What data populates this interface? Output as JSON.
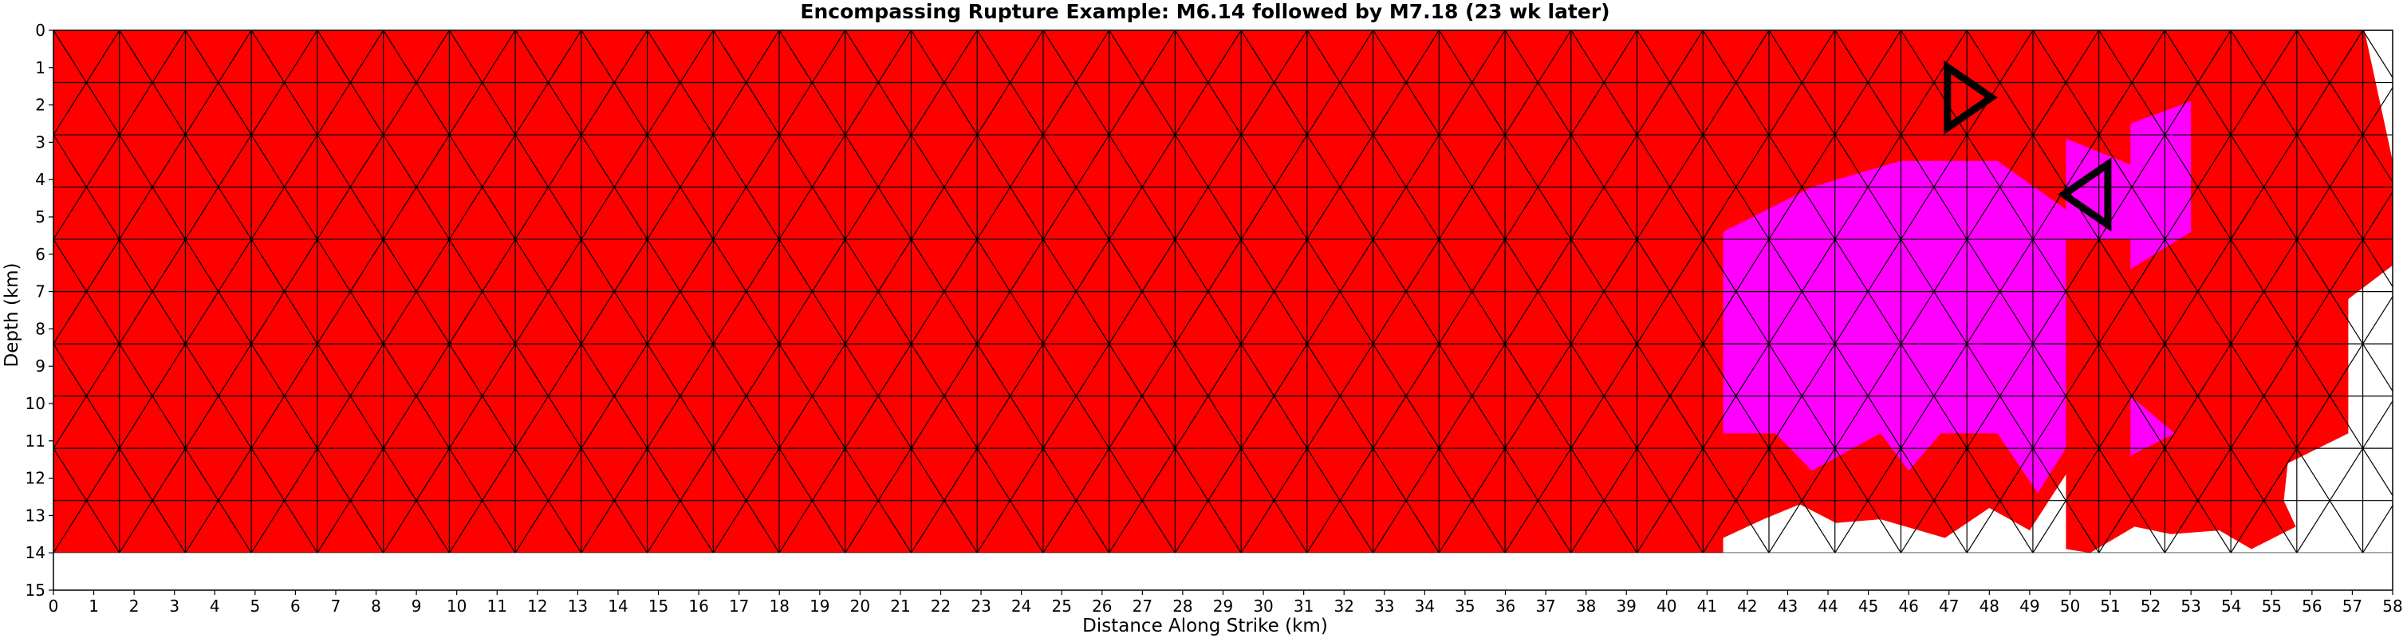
{
  "chart_data": {
    "type": "heatmap",
    "title": "Encompassing Rupture Example: M6.14 followed by M7.18 (23 wk later)",
    "xlabel": "Distance Along Strike (km)",
    "ylabel": "Depth (km)",
    "xlim": [
      0,
      58
    ],
    "ylim": [
      15,
      0
    ],
    "y_inverted": true,
    "xticks": [
      0,
      1,
      2,
      3,
      4,
      5,
      6,
      7,
      8,
      9,
      10,
      11,
      12,
      13,
      14,
      15,
      16,
      17,
      18,
      19,
      20,
      21,
      22,
      23,
      24,
      25,
      26,
      27,
      28,
      29,
      30,
      31,
      32,
      33,
      34,
      35,
      36,
      37,
      38,
      39,
      40,
      41,
      42,
      43,
      44,
      45,
      46,
      47,
      48,
      49,
      50,
      51,
      52,
      53,
      54,
      55,
      56,
      57,
      58
    ],
    "yticks": [
      0,
      1,
      2,
      3,
      4,
      5,
      6,
      7,
      8,
      9,
      10,
      11,
      12,
      13,
      14,
      15
    ],
    "mesh": {
      "description": "triangular fault mesh, node spacing 1.636 km along strike, 1.4 km in depth, 10 depth rows down to 14 km",
      "dx_km": 1.636,
      "dy_km": 1.4,
      "rows": 10,
      "cols": 35
    },
    "colors": {
      "first_rupture_M6.14": "#ff00ff",
      "second_rupture_M7.18": "#ff0000",
      "unruptured": "#ffffff",
      "mesh_line_ruptured": "#000000",
      "mesh_line_unruptured": "#aaaaaa",
      "marker": "#000000"
    },
    "series": [
      {
        "name": "M6.14",
        "color": "#ff00ff",
        "regions": [
          {
            "x": [
              41.4,
              43.6,
              45.8,
              48.2,
              49.9,
              49.9,
              49.2,
              48.2,
              46.8,
              46.0,
              45.3,
              43.6,
              42.7,
              41.4
            ],
            "y": [
              5.4,
              4.2,
              3.5,
              3.5,
              4.8,
              11.2,
              12.4,
              10.8,
              10.8,
              11.8,
              10.8,
              11.8,
              10.8,
              10.8
            ]
          },
          {
            "x": [
              49.9,
              51.5,
              51.5,
              49.9
            ],
            "y": [
              2.9,
              3.6,
              5.6,
              5.6
            ]
          },
          {
            "x": [
              51.5,
              53.0,
              53.0,
              51.5
            ],
            "y": [
              2.5,
              1.9,
              5.4,
              6.4
            ]
          },
          {
            "x": [
              51.5,
              52.6,
              51.5
            ],
            "y": [
              9.8,
              10.8,
              11.4
            ]
          }
        ]
      },
      {
        "name": "M7.18",
        "color": "#ff0000",
        "regions": [
          {
            "x": [
              0.0,
              4.9,
              4.9,
              8.2,
              9.9,
              9.9,
              41.4,
              43.3,
              43.3,
              44.9,
              45.3,
              47.9,
              49.0,
              49.9,
              52.8,
              55.4,
              57.1,
              57.3,
              58.0,
              58.0,
              56.9,
              56.9,
              55.4,
              55.3,
              55.6,
              54.5,
              53.7,
              52.5,
              51.6,
              50.5,
              49.9,
              49.9,
              49.0,
              48.0,
              46.9,
              45.3,
              44.2,
              43.3,
              42.4,
              41.4,
              41.4,
              0.0
            ],
            "y": [
              0.0,
              0.0,
              0.0,
              0.0,
              0.0,
              0.0,
              0.0,
              0.0,
              0.0,
              0.0,
              0.0,
              0.0,
              0.0,
              0.0,
              0.0,
              0.0,
              0.0,
              0.0,
              3.5,
              6.3,
              7.2,
              10.8,
              11.6,
              12.6,
              13.3,
              13.9,
              13.4,
              13.5,
              13.3,
              14.0,
              13.9,
              11.9,
              13.4,
              12.8,
              13.6,
              13.1,
              13.2,
              12.7,
              13.1,
              13.6,
              14.0,
              14.0
            ]
          }
        ]
      }
    ],
    "markers": [
      {
        "shape": "triangle-right",
        "x": 47.3,
        "y": 1.8
      },
      {
        "shape": "triangle-left",
        "x": 50.6,
        "y": 4.4
      }
    ]
  }
}
